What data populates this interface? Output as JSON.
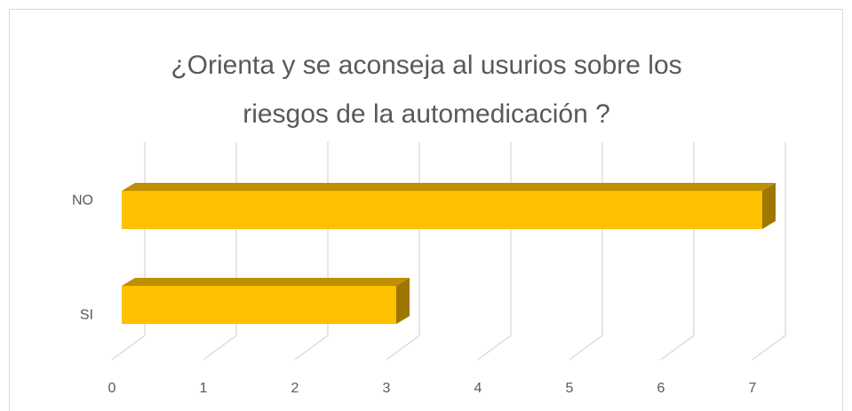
{
  "chart_data": {
    "type": "bar",
    "orientation": "horizontal",
    "title": [
      "¿Orienta y se aconseja al usurios sobre los",
      "riesgos de  la automedicación ?"
    ],
    "categories": [
      "SI",
      "NO"
    ],
    "values": [
      3,
      7
    ],
    "color": "#ffc000",
    "xlim": [
      0,
      7
    ],
    "xticks": [
      0,
      1,
      2,
      3,
      4,
      5,
      6,
      7
    ],
    "grid": true
  }
}
